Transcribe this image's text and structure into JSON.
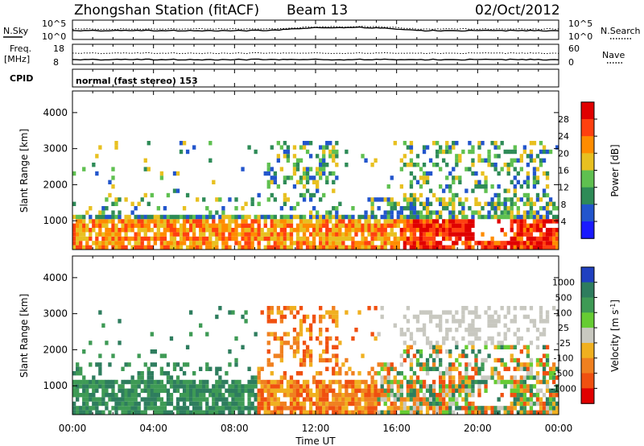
{
  "header": {
    "station": "Zhongshan Station (fitACF)",
    "beam": "Beam 13",
    "date": "02/Oct/2012"
  },
  "panels": {
    "nsky_label": "N.Sky",
    "nsky_ticks": [
      "10^5",
      "10^0"
    ],
    "nsearch_label": "N.Search",
    "nsearch_ticks": [
      "10^5",
      "10^0"
    ],
    "freq_label": "Freq.",
    "freq_unit": "[MHz]",
    "freq_ticks": [
      "18",
      "8"
    ],
    "nave_label": "Nave",
    "nave_ticks": [
      "60",
      "0"
    ],
    "cpid_label": "CPID",
    "cpid_text": "normal (fast stereo) 153"
  },
  "chart_data": [
    {
      "type": "heatmap",
      "title": "",
      "xlabel": "Time UT",
      "ylabel": "Slant Range [km]",
      "x_ticks": [
        "00:00",
        "04:00",
        "08:00",
        "12:00",
        "16:00",
        "20:00",
        "00:00"
      ],
      "y_ticks": [
        "1000",
        "2000",
        "3000",
        "4000"
      ],
      "ylim": [
        200,
        4600
      ],
      "colorbar": {
        "label": "Power [dB]",
        "ticks": [
          "4",
          "8",
          "12",
          "16",
          "20",
          "24",
          "28"
        ],
        "colors": [
          "#1a1aff",
          "#2255cc",
          "#2e8b57",
          "#5fc050",
          "#e8c020",
          "#ff8c00",
          "#ff4010",
          "#e00000"
        ]
      }
    },
    {
      "type": "heatmap",
      "title": "",
      "xlabel": "Time UT",
      "ylabel": "Slant Range [km]",
      "x_ticks": [
        "00:00",
        "04:00",
        "08:00",
        "12:00",
        "16:00",
        "20:00",
        "00:00"
      ],
      "y_ticks": [
        "1000",
        "2000",
        "3000",
        "4000"
      ],
      "ylim": [
        200,
        4600
      ],
      "colorbar": {
        "label": "Velocity [m s",
        "label_sup": "-1",
        "label_end": "]",
        "ticks": [
          "1000",
          "500",
          "100",
          "25",
          "-25",
          "-100",
          "-500",
          "-1000"
        ],
        "colors": [
          "#2040c0",
          "#2e7d5e",
          "#3e9a55",
          "#66cc33",
          "#c8c8c0",
          "#f0b020",
          "#f08020",
          "#f05010",
          "#e00000"
        ]
      }
    }
  ]
}
